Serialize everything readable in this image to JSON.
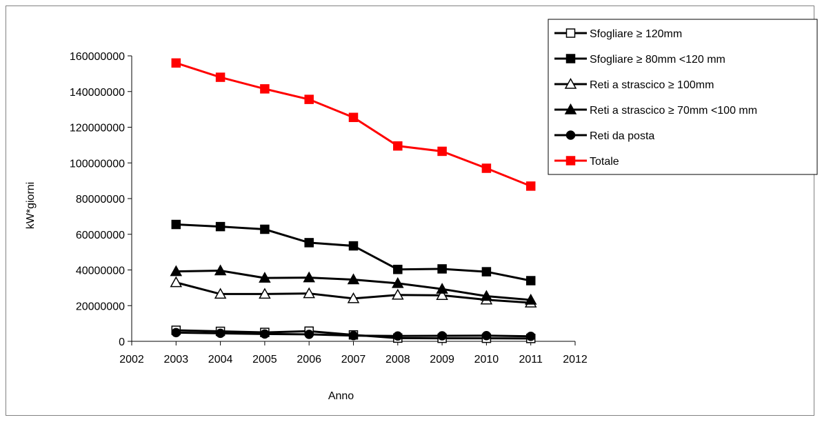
{
  "chart_data": {
    "type": "line",
    "title": "",
    "xlabel": "Anno",
    "ylabel": "kW*giorni",
    "xlim": [
      2002,
      2012
    ],
    "ylim": [
      0,
      160000000
    ],
    "x_ticks": [
      2002,
      2003,
      2004,
      2005,
      2006,
      2007,
      2008,
      2009,
      2010,
      2011,
      2012
    ],
    "y_ticks": [
      0,
      20000000,
      40000000,
      60000000,
      80000000,
      100000000,
      120000000,
      140000000,
      160000000
    ],
    "x_tick_labels": [
      "2002",
      "2003",
      "2004",
      "2005",
      "2006",
      "2007",
      "2008",
      "2009",
      "2010",
      "2011",
      "2012"
    ],
    "y_tick_labels": [
      "0",
      "20000000",
      "40000000",
      "60000000",
      "80000000",
      "100000000",
      "120000000",
      "140000000",
      "160000000"
    ],
    "grid": false,
    "legend_position": "top-right",
    "x": [
      2003,
      2004,
      2005,
      2006,
      2007,
      2008,
      2009,
      2010,
      2011
    ],
    "series": [
      {
        "name": "Sfogliare  ≥ 120mm",
        "marker": "square-open",
        "color": "#000000",
        "values": [
          6200000,
          5600000,
          5000000,
          5700000,
          3600000,
          1800000,
          1700000,
          1700000,
          1600000
        ]
      },
      {
        "name": "Sfogliare  ≥ 80mm <120 mm",
        "marker": "square-filled",
        "color": "#000000",
        "values": [
          65500000,
          64300000,
          62800000,
          55300000,
          53500000,
          40300000,
          40600000,
          39000000,
          34000000
        ]
      },
      {
        "name": "Reti a strascico ≥ 100mm",
        "marker": "triangle-open",
        "color": "#000000",
        "values": [
          33000000,
          26500000,
          26500000,
          26800000,
          24000000,
          26000000,
          25800000,
          23300000,
          21600000
        ]
      },
      {
        "name": "Reti a strascico ≥ 70mm <100 mm",
        "marker": "triangle-filled",
        "color": "#000000",
        "values": [
          39200000,
          39600000,
          35500000,
          35700000,
          34600000,
          32500000,
          29300000,
          25300000,
          23200000
        ]
      },
      {
        "name": "Reti da posta",
        "marker": "circle-filled",
        "color": "#000000",
        "values": [
          4900000,
          4500000,
          4100000,
          3900000,
          3200000,
          3000000,
          3100000,
          3200000,
          2800000
        ]
      },
      {
        "name": "Totale",
        "marker": "square-filled",
        "color": "#ff0000",
        "values": [
          156000000,
          148000000,
          141500000,
          135600000,
          125500000,
          109500000,
          106500000,
          97000000,
          87000000
        ]
      }
    ]
  }
}
